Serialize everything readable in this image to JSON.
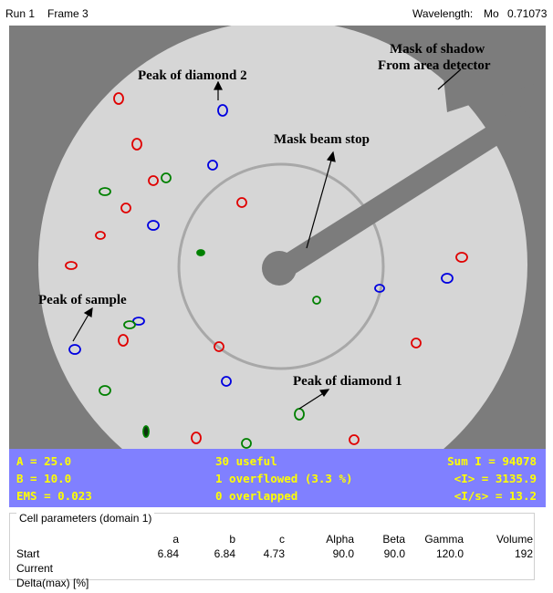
{
  "header": {
    "run": "Run 1",
    "frame": "Frame 3",
    "wavelength_label": "Wavelength:",
    "wavelength_element": "Mo",
    "wavelength_value": "0.71073"
  },
  "annotations": {
    "mask_shadow": [
      "Mask of shadow",
      "From area detector"
    ],
    "diamond2": "Peak of diamond 2",
    "beam_stop": "Mask beam stop",
    "sample": "Peak of sample",
    "diamond1": "Peak of diamond 1"
  },
  "stats": {
    "left": [
      "A = 25.0",
      "B = 10.0",
      "EMS = 0.023"
    ],
    "middle": [
      "30 useful",
      "1 overflowed (3.3 %)",
      "0 overlapped"
    ],
    "right": [
      "Sum I = 94078",
      "<I> = 3135.9",
      "<I/s> = 13.2"
    ]
  },
  "table": {
    "title": "Cell parameters (domain 1)",
    "headers": [
      "a",
      "b",
      "c",
      "Alpha",
      "Beta",
      "Gamma",
      "Volume"
    ],
    "rows": [
      {
        "label": "Start",
        "cells": [
          "6.84",
          "6.84",
          "4.73",
          "90.0",
          "90.0",
          "120.0",
          "192"
        ]
      },
      {
        "label": "Current",
        "cells": []
      },
      {
        "label": "Delta(max) [%]",
        "cells": []
      }
    ]
  }
}
